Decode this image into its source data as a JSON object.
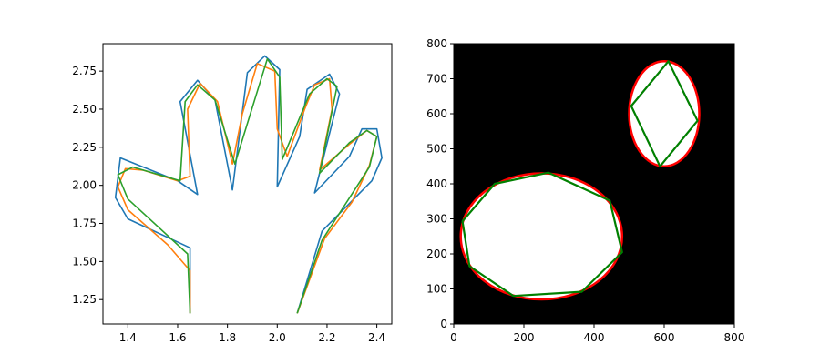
{
  "colors": {
    "c0": "#1f77b4",
    "c1": "#ff7f0e",
    "c2": "#2ca02c",
    "red": "#ff0000",
    "green": "#008000",
    "background": "#000000",
    "fill": "#ffffff"
  },
  "chart_data": [
    {
      "type": "line",
      "title": "",
      "xlabel": "",
      "ylabel": "",
      "xlim": [
        1.3,
        2.46
      ],
      "ylim": [
        1.09,
        2.93
      ],
      "xticks": [
        1.4,
        1.6,
        1.8,
        2.0,
        2.2,
        2.4
      ],
      "xtick_labels": [
        "1.4",
        "1.6",
        "1.8",
        "2.0",
        "2.2",
        "2.4"
      ],
      "yticks": [
        1.25,
        1.5,
        1.75,
        2.0,
        2.25,
        2.5,
        2.75
      ],
      "ytick_labels": [
        "1.25",
        "1.50",
        "1.75",
        "2.00",
        "2.25",
        "2.50",
        "2.75"
      ],
      "grid": false,
      "series": [
        {
          "color": "c0",
          "points": [
            [
              1.65,
              1.16
            ],
            [
              1.65,
              1.59
            ],
            [
              1.4,
              1.78
            ],
            [
              1.35,
              1.92
            ],
            [
              1.37,
              2.18
            ],
            [
              1.6,
              2.03
            ],
            [
              1.68,
              1.94
            ],
            [
              1.61,
              2.55
            ],
            [
              1.68,
              2.69
            ],
            [
              1.75,
              2.56
            ],
            [
              1.82,
              1.97
            ],
            [
              1.88,
              2.74
            ],
            [
              1.95,
              2.85
            ],
            [
              2.01,
              2.76
            ],
            [
              2.0,
              1.99
            ],
            [
              2.09,
              2.32
            ],
            [
              2.12,
              2.63
            ],
            [
              2.21,
              2.73
            ],
            [
              2.25,
              2.6
            ],
            [
              2.15,
              1.95
            ],
            [
              2.29,
              2.19
            ],
            [
              2.34,
              2.37
            ],
            [
              2.4,
              2.37
            ],
            [
              2.42,
              2.18
            ],
            [
              2.38,
              2.03
            ],
            [
              2.18,
              1.7
            ],
            [
              2.08,
              1.16
            ]
          ]
        },
        {
          "color": "c1",
          "points": [
            [
              1.65,
              1.16
            ],
            [
              1.65,
              1.44
            ],
            [
              1.56,
              1.61
            ],
            [
              1.4,
              1.84
            ],
            [
              1.36,
              1.99
            ],
            [
              1.39,
              2.11
            ],
            [
              1.46,
              2.1
            ],
            [
              1.6,
              2.03
            ],
            [
              1.65,
              2.06
            ],
            [
              1.64,
              2.5
            ],
            [
              1.69,
              2.67
            ],
            [
              1.76,
              2.55
            ],
            [
              1.82,
              2.14
            ],
            [
              1.86,
              2.47
            ],
            [
              1.92,
              2.8
            ],
            [
              1.99,
              2.75
            ],
            [
              2.0,
              2.37
            ],
            [
              2.04,
              2.19
            ],
            [
              2.11,
              2.5
            ],
            [
              2.15,
              2.66
            ],
            [
              2.21,
              2.7
            ],
            [
              2.22,
              2.5
            ],
            [
              2.17,
              2.1
            ],
            [
              2.29,
              2.27
            ],
            [
              2.36,
              2.36
            ],
            [
              2.4,
              2.32
            ],
            [
              2.37,
              2.13
            ],
            [
              2.3,
              1.89
            ],
            [
              2.19,
              1.65
            ],
            [
              2.08,
              1.16
            ]
          ]
        },
        {
          "color": "c2",
          "points": [
            [
              1.65,
              1.16
            ],
            [
              1.64,
              1.55
            ],
            [
              1.4,
              1.91
            ],
            [
              1.36,
              2.07
            ],
            [
              1.42,
              2.12
            ],
            [
              1.61,
              2.03
            ],
            [
              1.63,
              2.55
            ],
            [
              1.68,
              2.66
            ],
            [
              1.75,
              2.56
            ],
            [
              1.83,
              2.14
            ],
            [
              1.96,
              2.83
            ],
            [
              2.01,
              2.71
            ],
            [
              2.02,
              2.17
            ],
            [
              2.13,
              2.6
            ],
            [
              2.2,
              2.7
            ],
            [
              2.24,
              2.65
            ],
            [
              2.17,
              2.08
            ],
            [
              2.29,
              2.28
            ],
            [
              2.36,
              2.36
            ],
            [
              2.4,
              2.32
            ],
            [
              2.37,
              2.12
            ],
            [
              2.18,
              1.64
            ],
            [
              2.08,
              1.16
            ]
          ]
        }
      ]
    },
    {
      "type": "image-with-contours",
      "title": "",
      "xlabel": "",
      "ylabel": "",
      "xlim": [
        0,
        800
      ],
      "ylim": [
        0,
        800
      ],
      "xticks": [
        0,
        200,
        400,
        600,
        800
      ],
      "xtick_labels": [
        "0",
        "200",
        "400",
        "600",
        "800"
      ],
      "yticks": [
        0,
        100,
        200,
        300,
        400,
        500,
        600,
        700,
        800
      ],
      "ytick_labels": [
        "0",
        "100",
        "200",
        "300",
        "400",
        "500",
        "600",
        "700",
        "800"
      ],
      "grid": false,
      "ellipses": [
        {
          "cx": 250,
          "cy": 250,
          "rx": 230,
          "ry": 180
        },
        {
          "cx": 600,
          "cy": 600,
          "rx": 100,
          "ry": 150
        }
      ],
      "contour_color": "red",
      "polygons": [
        {
          "color": "green",
          "points": [
            [
              170,
              80
            ],
            [
              365,
              92
            ],
            [
              480,
              205
            ],
            [
              445,
              352
            ],
            [
              270,
              432
            ],
            [
              117,
              400
            ],
            [
              25,
              293
            ],
            [
              45,
              165
            ]
          ]
        },
        {
          "color": "green",
          "points": [
            [
              612,
              750
            ],
            [
              695,
              580
            ],
            [
              588,
              450
            ],
            [
              506,
              622
            ]
          ]
        }
      ]
    }
  ]
}
